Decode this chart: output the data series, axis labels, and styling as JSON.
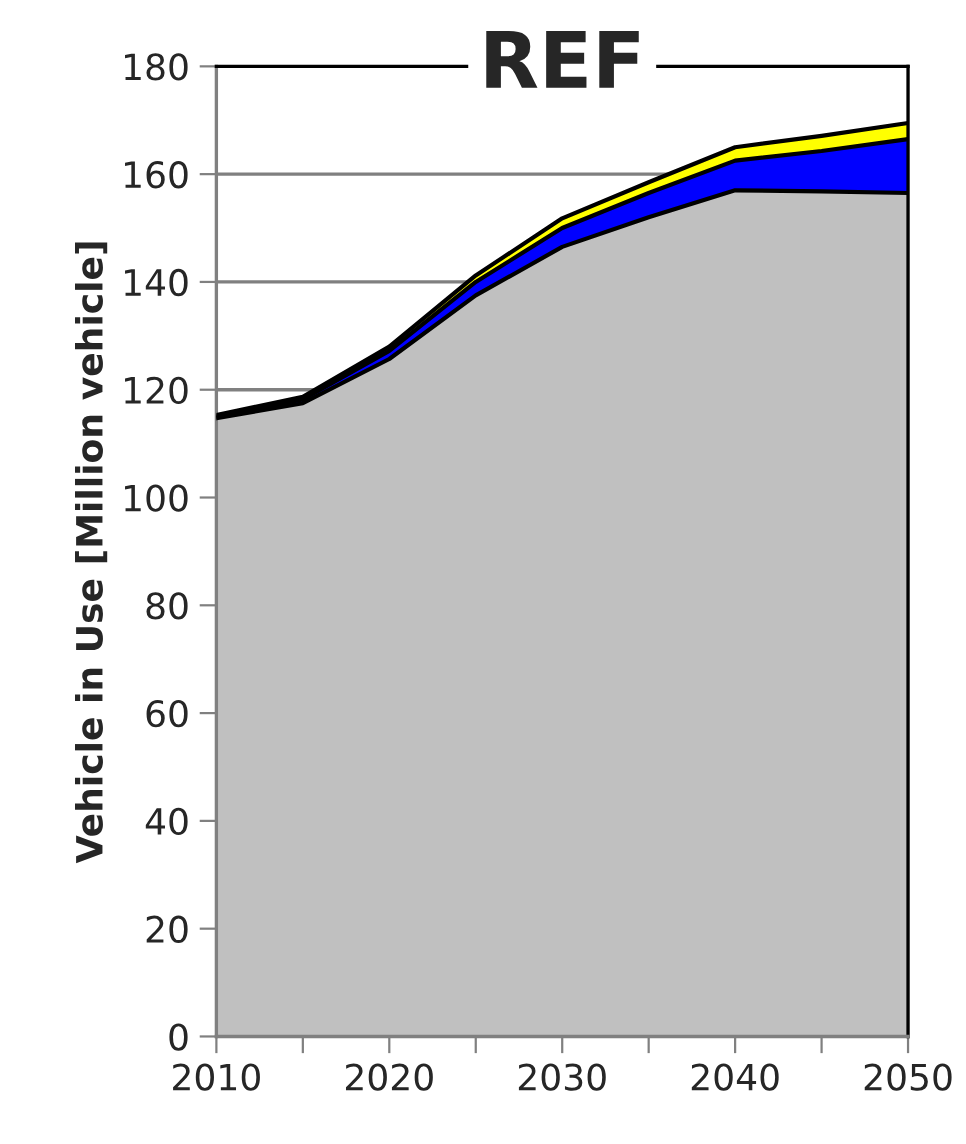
{
  "chart_data": {
    "type": "area",
    "stacked": true,
    "title": "REF",
    "ylabel": "Vehicle in Use [Million vehicle]",
    "x": [
      2010,
      2015,
      2020,
      2025,
      2030,
      2035,
      2040,
      2045,
      2050
    ],
    "series": [
      {
        "color": "#c0c0c0",
        "values": [
          114.7,
          117.5,
          125.7,
          137.5,
          146.5,
          152,
          157,
          156.8,
          156.5
        ]
      },
      {
        "color": "#0000ff",
        "values": [
          0.3,
          0.7,
          1.5,
          2.5,
          3.5,
          4.5,
          5.5,
          7.5,
          10
        ]
      },
      {
        "color": "#ffff00",
        "values": [
          0.3,
          0.5,
          0.8,
          1.2,
          1.8,
          2,
          2.5,
          2.8,
          3
        ]
      }
    ],
    "xlim": [
      2010,
      2050
    ],
    "ylim": [
      0,
      180
    ],
    "xticks": [
      2010,
      {
        "value": 2015,
        "label": null
      },
      2020,
      {
        "value": 2025,
        "label": null
      },
      2030,
      {
        "value": 2035,
        "label": null
      },
      2040,
      {
        "value": 2045,
        "label": null
      },
      2050
    ],
    "yticks": [
      0,
      20,
      40,
      60,
      80,
      100,
      120,
      140,
      160,
      180
    ],
    "grid": "y"
  }
}
